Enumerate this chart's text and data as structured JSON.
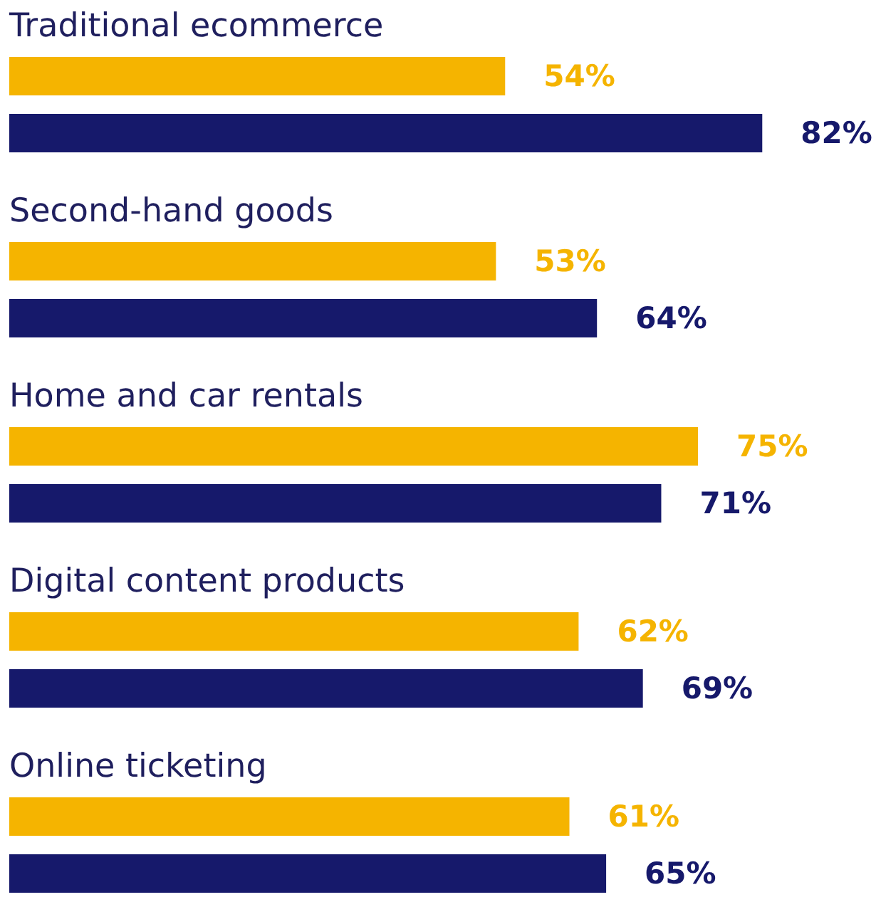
{
  "chart_data": {
    "type": "bar",
    "orientation": "horizontal",
    "categories": [
      "Traditional ecommerce",
      "Second-hand goods",
      "Home and car rentals",
      "Digital content products",
      "Online ticketing"
    ],
    "series": [
      {
        "color": "#f5b400",
        "values": [
          54,
          53,
          75,
          62,
          61
        ],
        "value_labels": [
          "54%",
          "53%",
          "75%",
          "62%",
          "61%"
        ]
      },
      {
        "color": "#16196b",
        "values": [
          82,
          64,
          71,
          69,
          65
        ],
        "value_labels": [
          "82%",
          "64%",
          "71%",
          "69%",
          "65%"
        ]
      }
    ],
    "grid": false
  }
}
